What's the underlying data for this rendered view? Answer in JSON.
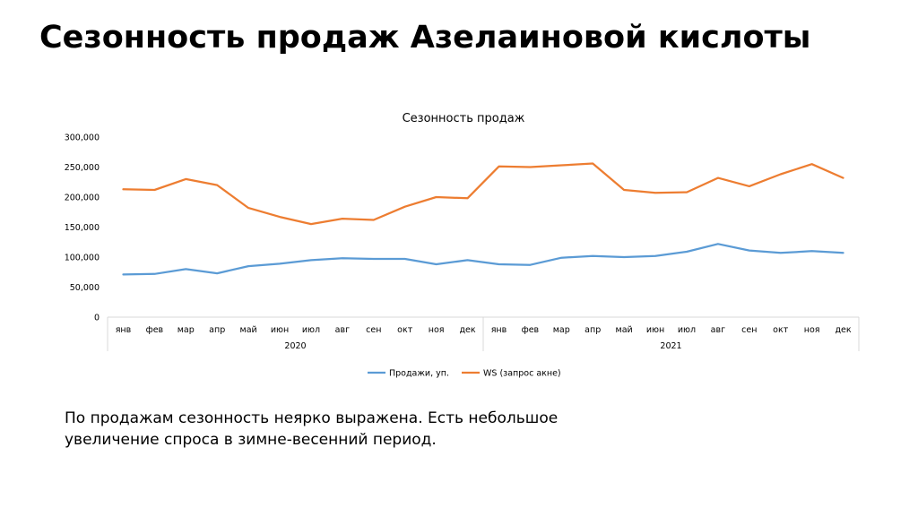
{
  "slide": {
    "title": "Сезонность продаж Азелаиновой кислоты",
    "note_lines": [
      "По продажам сезонность неярко выражена. Есть небольшое",
      "увеличение спроса в зимне-весенний период."
    ]
  },
  "chart_data": {
    "type": "line",
    "title": "Сезонность продаж",
    "xlabel": "",
    "ylabel": "",
    "ylim": [
      0,
      300000
    ],
    "yticks": [
      0,
      50000,
      100000,
      150000,
      200000,
      250000,
      300000
    ],
    "ytick_labels": [
      "0",
      "50,000",
      "100,000",
      "150,000",
      "200,000",
      "250,000",
      "300,000"
    ],
    "categories": [
      "янв",
      "фев",
      "мар",
      "апр",
      "май",
      "июн",
      "июл",
      "авг",
      "сен",
      "окт",
      "ноя",
      "дек",
      "янв",
      "фев",
      "мар",
      "апр",
      "май",
      "июн",
      "июл",
      "авг",
      "сен",
      "окт",
      "ноя",
      "дек"
    ],
    "groups": [
      {
        "label": "2020",
        "count": 12
      },
      {
        "label": "2021",
        "count": 12
      }
    ],
    "grid": false,
    "legend_position": "bottom",
    "series": [
      {
        "name": "Продажи, уп.",
        "color": "#5B9BD5",
        "values": [
          71000,
          72000,
          80000,
          73000,
          85000,
          89000,
          95000,
          98000,
          97000,
          97000,
          88000,
          95000,
          88000,
          87000,
          99000,
          102000,
          100000,
          102000,
          109000,
          122000,
          111000,
          107000,
          110000,
          107000
        ]
      },
      {
        "name": "WS (запрос акне)",
        "color": "#ED7D31",
        "values": [
          213000,
          212000,
          230000,
          220000,
          182000,
          167000,
          155000,
          164000,
          162000,
          184000,
          200000,
          198000,
          251000,
          250000,
          253000,
          256000,
          212000,
          207000,
          208000,
          232000,
          218000,
          238000,
          255000,
          232000
        ]
      }
    ]
  }
}
